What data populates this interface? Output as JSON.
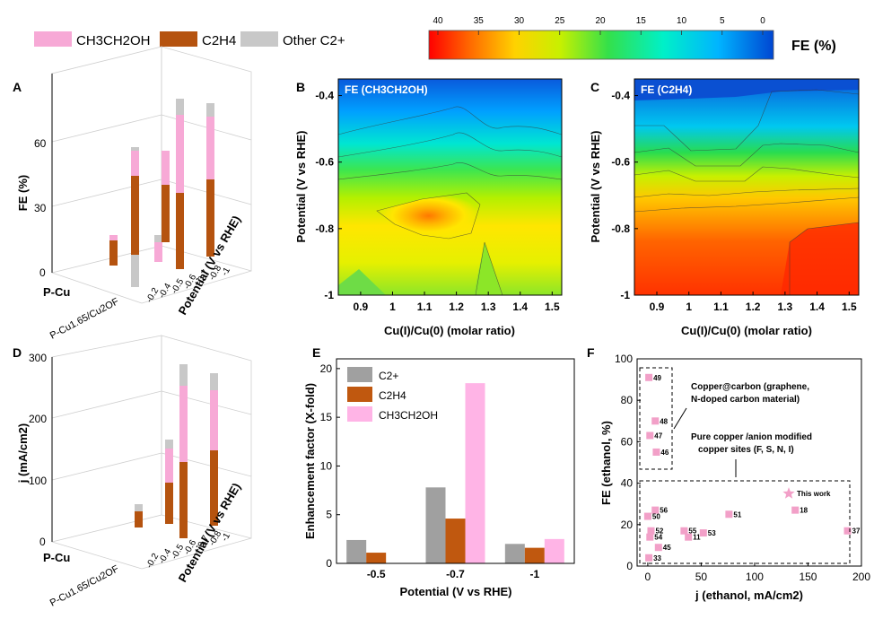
{
  "legend_top": {
    "items": [
      {
        "label": "CH3CH2OH",
        "color": "#f7a9d6"
      },
      {
        "label": "C2H4",
        "color": "#b5530f"
      },
      {
        "label": "Other C2+",
        "color": "#c8c8c8"
      }
    ]
  },
  "colorbar": {
    "ticks": [
      "40",
      "35",
      "30",
      "25",
      "20",
      "15",
      "10",
      "5",
      "0"
    ],
    "label": "FE (%)",
    "colors": [
      "#ff0000",
      "#ff8c00",
      "#ffe600",
      "#c8f000",
      "#34e04a",
      "#00f0c8",
      "#00b4ff",
      "#0046d2"
    ]
  },
  "panels": {
    "A": "A",
    "B": "B",
    "C": "C",
    "D": "D",
    "E": "E",
    "F": "F"
  },
  "panel_A": {
    "ylabel": "FE (%)",
    "zticks": [
      "0",
      "30",
      "60"
    ],
    "samples": [
      "P-Cu",
      "P-Cu1.65/Cu2OF"
    ],
    "potential_label": "Potential (V vs RHE)",
    "potential_ticks": [
      "-0.2",
      "-0.4",
      "-0.5",
      "-0.6",
      "-0.7",
      "-0.8",
      "-1"
    ]
  },
  "panel_D": {
    "ylabel": "j (mA/cm2)",
    "zticks": [
      "0",
      "100",
      "200",
      "300"
    ],
    "samples": [
      "P-Cu",
      "P-Cu1.65/Cu2OF"
    ],
    "potential_label": "Potential (V vs RHE)",
    "potential_ticks": [
      "-0.2",
      "-0.4",
      "-0.5",
      "-0.6",
      "-0.7",
      "-0.8",
      "-1"
    ]
  },
  "panel_B": {
    "title": "FE (CH3CH2OH)",
    "xlabel": "Cu(I)/Cu(0) (molar ratio)",
    "ylabel": "Potential (V vs RHE)",
    "xticks": [
      "0.9",
      "1",
      "1.1",
      "1.2",
      "1.3",
      "1.4",
      "1.5"
    ],
    "yticks": [
      "-0.4",
      "-0.6",
      "-0.8",
      "-1"
    ]
  },
  "panel_C": {
    "title": "FE (C2H4)",
    "xlabel": "Cu(I)/Cu(0) (molar ratio)",
    "ylabel": "Potential (V vs RHE)",
    "xticks": [
      "0.9",
      "1",
      "1.1",
      "1.2",
      "1.3",
      "1.4",
      "1.5"
    ],
    "yticks": [
      "-0.4",
      "-0.6",
      "-0.8",
      "-1"
    ]
  },
  "chart_data": [
    {
      "panel": "E",
      "type": "bar",
      "xlabel": "Potential (V vs RHE)",
      "ylabel": "Enhancement factor (X-fold)",
      "categories": [
        "-0.5",
        "-0.7",
        "-1"
      ],
      "ylim": [
        0,
        21
      ],
      "yticks": [
        "0",
        "5",
        "10",
        "15",
        "20"
      ],
      "series": [
        {
          "name": "C2+",
          "color": "#a0a0a0",
          "values": [
            2.4,
            7.8,
            2.0
          ]
        },
        {
          "name": "C2H4",
          "color": "#c0580f",
          "values": [
            1.1,
            4.6,
            1.6
          ]
        },
        {
          "name": "CH3CH2OH",
          "color": "#ffb4e6",
          "values": [
            0.0,
            18.5,
            2.5
          ]
        }
      ]
    },
    {
      "panel": "F",
      "type": "scatter",
      "xlabel": "j (ethanol, mA/cm2)",
      "ylabel": "FE (ethanol, %)",
      "xlim": [
        -10,
        200
      ],
      "ylim": [
        0,
        100
      ],
      "xticks": [
        "0",
        "50",
        "100",
        "150",
        "200"
      ],
      "yticks": [
        "0",
        "20",
        "40",
        "60",
        "80",
        "100"
      ],
      "points": [
        {
          "label": "49",
          "x": 1,
          "y": 91
        },
        {
          "label": "48",
          "x": 7,
          "y": 70
        },
        {
          "label": "47",
          "x": 2,
          "y": 63
        },
        {
          "label": "46",
          "x": 8,
          "y": 55
        },
        {
          "label": "56",
          "x": 7,
          "y": 27
        },
        {
          "label": "50",
          "x": 0,
          "y": 24
        },
        {
          "label": "52",
          "x": 3,
          "y": 17
        },
        {
          "label": "54",
          "x": 2,
          "y": 14
        },
        {
          "label": "45",
          "x": 10,
          "y": 9
        },
        {
          "label": "33",
          "x": 1,
          "y": 4
        },
        {
          "label": "55",
          "x": 34,
          "y": 17
        },
        {
          "label": "11",
          "x": 38,
          "y": 14
        },
        {
          "label": "53",
          "x": 52,
          "y": 16
        },
        {
          "label": "51",
          "x": 76,
          "y": 25
        },
        {
          "label": "18",
          "x": 138,
          "y": 27
        },
        {
          "label": "37",
          "x": 187,
          "y": 17
        }
      ],
      "highlight": {
        "label": "This work",
        "x": 132,
        "y": 35
      },
      "annotations": [
        "Copper@carbon (graphene,",
        "N-doped carbon material)",
        "Pure copper /anion modified",
        "copper sites   (F, S, N, I)"
      ]
    }
  ]
}
